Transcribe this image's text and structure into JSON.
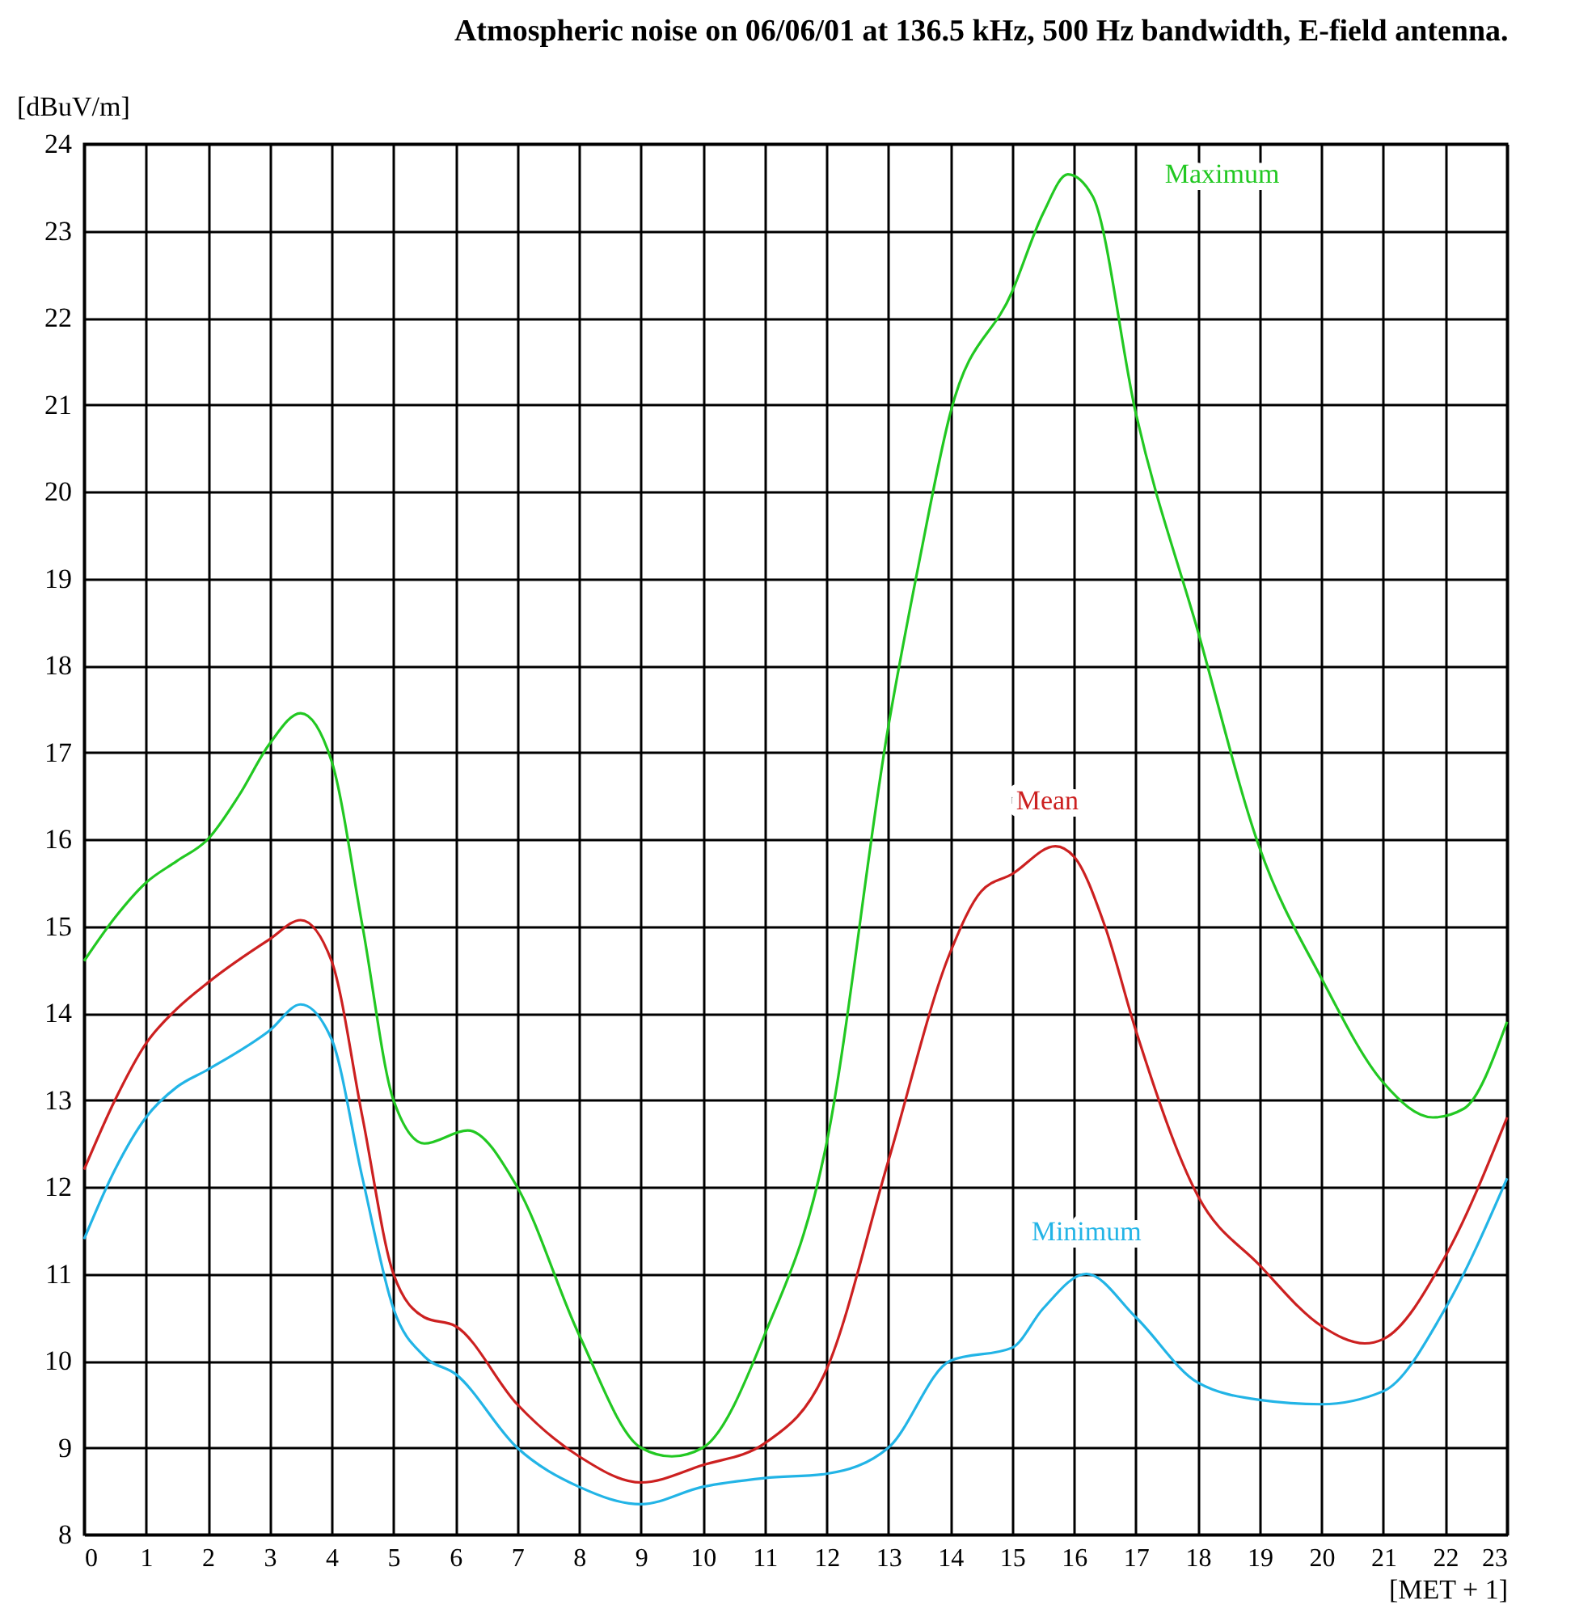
{
  "chart_data": {
    "type": "line",
    "title": "Atmospheric noise on 06/06/01 at 136.5 kHz, 500 Hz bandwidth, E-field antenna.",
    "xlabel": "[MET + 1]",
    "ylabel": "[dBuV/m]",
    "xlim": [
      0,
      23
    ],
    "xticks": [
      0,
      1,
      2,
      3,
      4,
      5,
      6,
      7,
      8,
      9,
      10,
      11,
      12,
      13,
      14,
      15,
      16,
      17,
      18,
      19,
      20,
      21,
      22,
      23
    ],
    "ylim": [
      8,
      24
    ],
    "yticks": [
      8,
      9,
      10,
      11,
      12,
      13,
      14,
      15,
      16,
      17,
      18,
      19,
      20,
      21,
      22,
      23,
      24
    ],
    "grid": true,
    "legend": false,
    "marker": "none",
    "line_style": "solid",
    "series": [
      {
        "name": "Maximum",
        "color": "#22c822",
        "x": [
          0,
          0.5,
          1,
          1.5,
          2,
          2.5,
          3,
          3.5,
          4,
          4.5,
          5,
          5.5,
          6.2,
          7,
          8,
          9,
          9.5,
          10,
          11,
          12,
          13,
          13.5,
          14,
          15,
          15.5,
          15.9,
          16.3,
          17,
          18,
          19,
          20,
          21,
          21.8,
          22.3,
          23
        ],
        "values": [
          14.6,
          15.1,
          15.5,
          15.75,
          16.0,
          16.5,
          17.1,
          17.45,
          16.9,
          15.0,
          13.0,
          12.5,
          12.65,
          12.0,
          10.3,
          9.0,
          8.9,
          9.0,
          10.3,
          12.5,
          17.3,
          19.2,
          20.9,
          22.3,
          23.2,
          23.65,
          23.4,
          20.9,
          18.4,
          15.9,
          14.4,
          13.2,
          12.8,
          12.9,
          13.9
        ]
      },
      {
        "name": "Mean",
        "color": "#cc2020",
        "x": [
          0,
          0.5,
          1,
          1.5,
          2,
          3,
          3.5,
          4,
          4.5,
          5,
          5.5,
          6,
          7,
          8,
          9,
          10,
          11,
          12,
          13,
          14,
          14.5,
          15,
          15.7,
          16,
          16.5,
          17,
          18,
          19,
          20,
          20.7,
          21,
          22,
          23
        ],
        "values": [
          12.2,
          13.0,
          13.65,
          14.05,
          14.35,
          14.85,
          15.07,
          14.6,
          12.8,
          11.0,
          10.5,
          10.4,
          9.5,
          8.9,
          8.6,
          8.8,
          9.05,
          9.9,
          12.3,
          14.7,
          15.4,
          15.6,
          15.92,
          15.8,
          15.0,
          13.8,
          11.9,
          11.1,
          10.4,
          10.2,
          10.25,
          11.2,
          12.8
        ]
      },
      {
        "name": "Minimum",
        "color": "#22b4e6",
        "x": [
          0,
          0.5,
          1,
          1.5,
          2,
          3,
          3.5,
          4,
          4.5,
          5,
          5.5,
          6,
          7,
          8,
          9,
          10,
          11,
          12,
          13,
          14,
          15,
          15.5,
          16.2,
          17,
          18,
          19,
          20,
          21,
          22,
          23
        ],
        "values": [
          11.4,
          12.2,
          12.8,
          13.15,
          13.35,
          13.8,
          14.1,
          13.7,
          12.1,
          10.6,
          10.05,
          9.85,
          9.0,
          8.55,
          8.35,
          8.55,
          8.65,
          8.7,
          9.0,
          10.0,
          10.15,
          10.6,
          11.0,
          10.5,
          9.75,
          9.55,
          9.5,
          9.65,
          10.6,
          12.1
        ]
      }
    ]
  }
}
